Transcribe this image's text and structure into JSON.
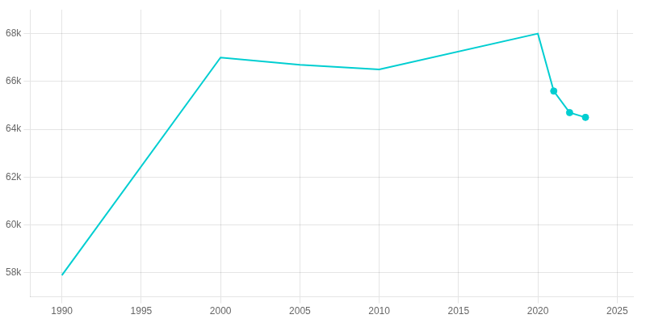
{
  "chart_data": {
    "type": "line",
    "series": [
      {
        "type": "line",
        "color": "#00CED1",
        "marker": "none",
        "x": [
          1990,
          2000,
          2005,
          2010,
          2020,
          2021,
          2022,
          2023
        ],
        "values": [
          57900,
          67000,
          66700,
          66500,
          68000,
          65600,
          64700,
          64500
        ]
      },
      {
        "type": "scatter",
        "color": "#00CED1",
        "marker": "circle",
        "x": [
          2021,
          2022,
          2023
        ],
        "values": [
          65600,
          64700,
          64500
        ]
      }
    ],
    "xlim": [
      1988,
      2026
    ],
    "ylim": [
      57000,
      69000
    ],
    "xticks": [
      1990,
      1995,
      2000,
      2005,
      2010,
      2015,
      2020,
      2025
    ],
    "yticks": [
      {
        "value": 58000,
        "label": "58k"
      },
      {
        "value": 60000,
        "label": "60k"
      },
      {
        "value": 62000,
        "label": "62k"
      },
      {
        "value": 64000,
        "label": "64k"
      },
      {
        "value": 66000,
        "label": "66k"
      },
      {
        "value": 68000,
        "label": "68k"
      }
    ],
    "grid": true
  }
}
